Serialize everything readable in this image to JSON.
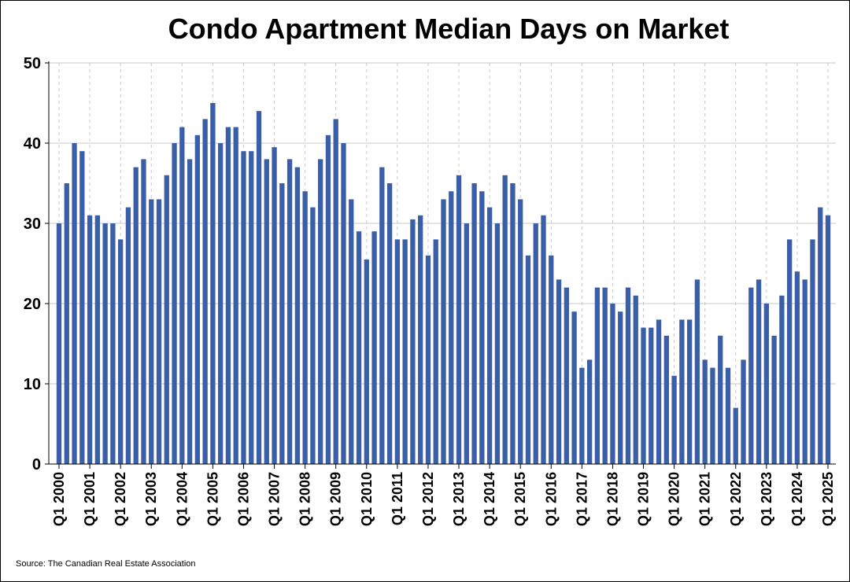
{
  "chart_data": {
    "type": "bar",
    "title": "Condo Apartment Median Days on Market",
    "xlabel": "",
    "ylabel": "",
    "ylim": [
      0,
      50
    ],
    "yticks": [
      0,
      10,
      20,
      30,
      40,
      50
    ],
    "grid": {
      "horizontal": true,
      "vertical": "dashed"
    },
    "bar_color": "#3a5ea8",
    "grid_color": "#c8c8c8",
    "x_tick_labels": [
      "Q1 2000",
      "Q1 2001",
      "Q1 2002",
      "Q1 2003",
      "Q1 2004",
      "Q1 2005",
      "Q1 2006",
      "Q1 2007",
      "Q1 2008",
      "Q1 2009",
      "Q1 2010",
      "Q1 2011",
      "Q1 2012",
      "Q1 2013",
      "Q1 2014",
      "Q1 2015",
      "Q1 2016",
      "Q1 2017",
      "Q1 2018",
      "Q1 2019",
      "Q1 2020",
      "Q1 2021",
      "Q1 2022",
      "Q1 2023",
      "Q1 2024",
      "Q1 2025"
    ],
    "series": [
      {
        "name": "Median Days on Market",
        "values": [
          30,
          35,
          40,
          39,
          31,
          31,
          30,
          30,
          28,
          32,
          37,
          38,
          33,
          33,
          36,
          40,
          42,
          38,
          41,
          43,
          45,
          40,
          42,
          42,
          39,
          39,
          44,
          38,
          39.5,
          35,
          38,
          37,
          34,
          32,
          38,
          41,
          43,
          40,
          33,
          29,
          25.5,
          29,
          37,
          35,
          28,
          28,
          30.5,
          31,
          26,
          28,
          33,
          34,
          36,
          30,
          35,
          34,
          32,
          30,
          36,
          35,
          33,
          26,
          30,
          31,
          26,
          23,
          22,
          19,
          12,
          13,
          22,
          22,
          20,
          19,
          22,
          21,
          17,
          17,
          18,
          16,
          11,
          18,
          18,
          23,
          13,
          12,
          16,
          12,
          7,
          13,
          22,
          23,
          20,
          16,
          21,
          28,
          24,
          23,
          28,
          32,
          31
        ]
      }
    ]
  },
  "source": "Source: The Canadian Real Estate Association"
}
